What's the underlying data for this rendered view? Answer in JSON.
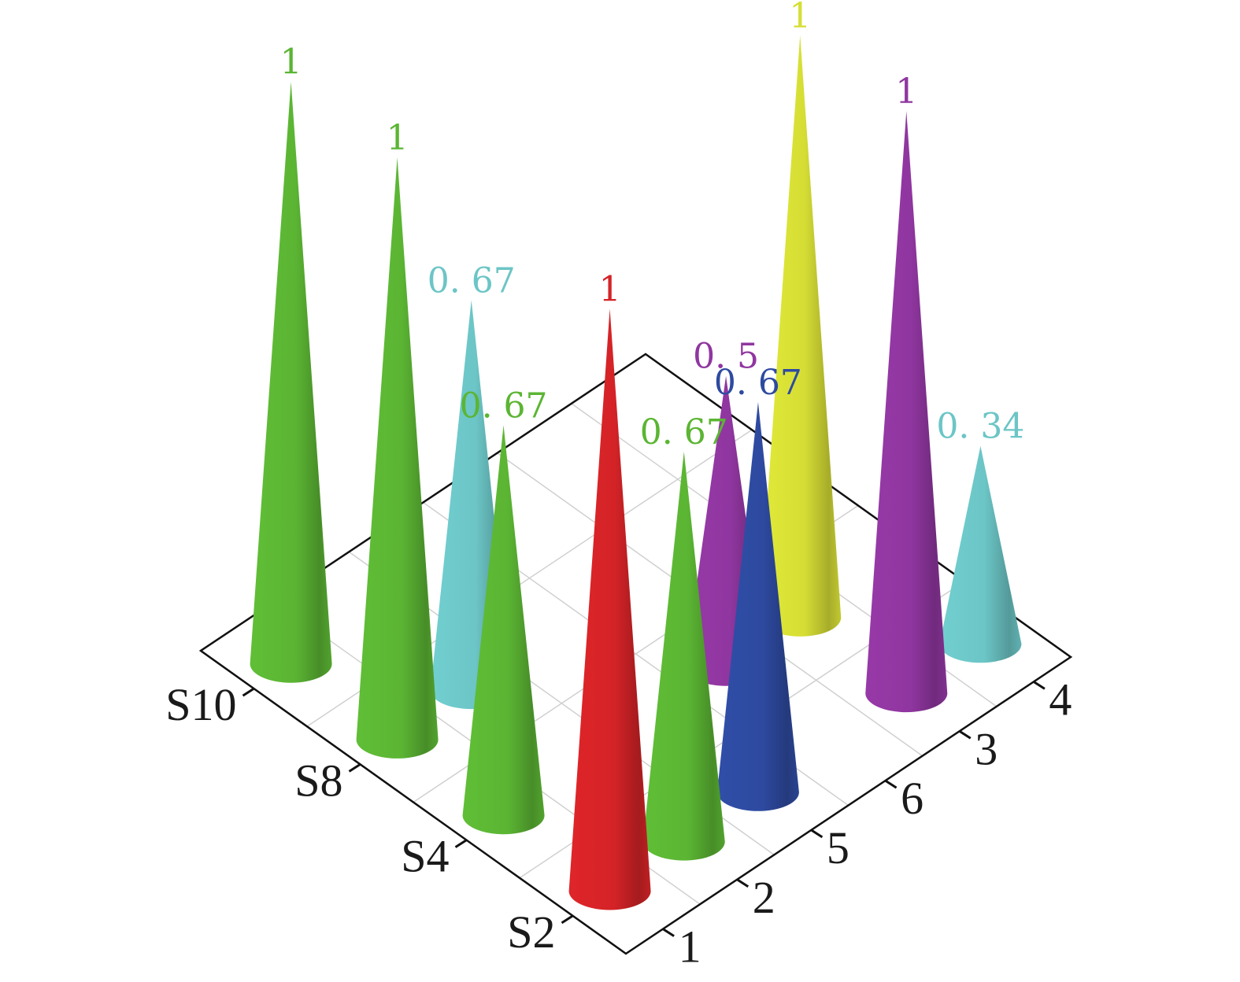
{
  "chart_data": {
    "type": "3d-cone",
    "title": "",
    "xlabel": "",
    "ylabel": "",
    "zlabel": "",
    "grid": true,
    "front_axis": {
      "categories": [
        "1",
        "2",
        "5",
        "6",
        "3",
        "4"
      ]
    },
    "left_axis": {
      "categories": [
        "S2",
        "S4",
        "S8",
        "S10"
      ]
    },
    "zlim": [
      0,
      1
    ],
    "points": [
      {
        "row": "S10",
        "col": "1",
        "value": 1,
        "label": "1",
        "color": "#5bb533"
      },
      {
        "row": "S8",
        "col": "1",
        "value": 1,
        "label": "1",
        "color": "#5bb533"
      },
      {
        "row": "S8",
        "col": "2",
        "value": 0.67,
        "label": "0. 67",
        "color": "#6cc5c6"
      },
      {
        "row": "S4",
        "col": "1",
        "value": 0.67,
        "label": "0. 67",
        "color": "#5bb533"
      },
      {
        "row": "S2",
        "col": "1",
        "value": 1,
        "label": "1",
        "color": "#d42327"
      },
      {
        "row": "S2",
        "col": "2",
        "value": 0.67,
        "label": "0. 67",
        "color": "#5bb533"
      },
      {
        "row": "S4",
        "col": "6",
        "value": 0.5,
        "label": "0. 5",
        "color": "#9036a0"
      },
      {
        "row": "S2",
        "col": "5",
        "value": 0.67,
        "label": "0. 67",
        "color": "#2e4aa0"
      },
      {
        "row": "S4",
        "col": "3",
        "value": 1,
        "label": "1",
        "color": "#d6de35"
      },
      {
        "row": "S2",
        "col": "3",
        "value": 1,
        "label": "1",
        "color": "#9036a0"
      },
      {
        "row": "S2",
        "col": "4",
        "value": 0.34,
        "label": "0. 34",
        "color": "#6cc5c6"
      }
    ]
  }
}
